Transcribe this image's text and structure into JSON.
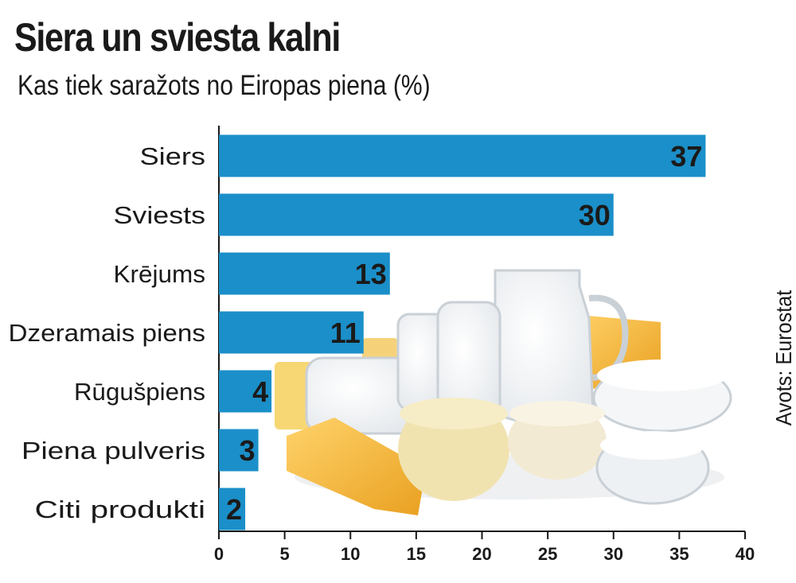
{
  "chart_data": {
    "type": "bar",
    "orientation": "horizontal",
    "title": "Siera un sviesta kalni",
    "subtitle": "Kas tiek saražots no Eiropas piena (%)",
    "source": "Avots: Eurostat",
    "categories": [
      "Siers",
      "Sviests",
      "Krējums",
      "Dzeramais piens",
      "Rūgušpiens",
      "Piena pulveris",
      "Citi produkti"
    ],
    "values": [
      37,
      30,
      13,
      11,
      4,
      3,
      2
    ],
    "xlim": [
      0,
      40
    ],
    "xticks": [
      0,
      5,
      10,
      15,
      20,
      25,
      30,
      35,
      40
    ],
    "bar_color": "#1b8fc9",
    "grid": false
  }
}
